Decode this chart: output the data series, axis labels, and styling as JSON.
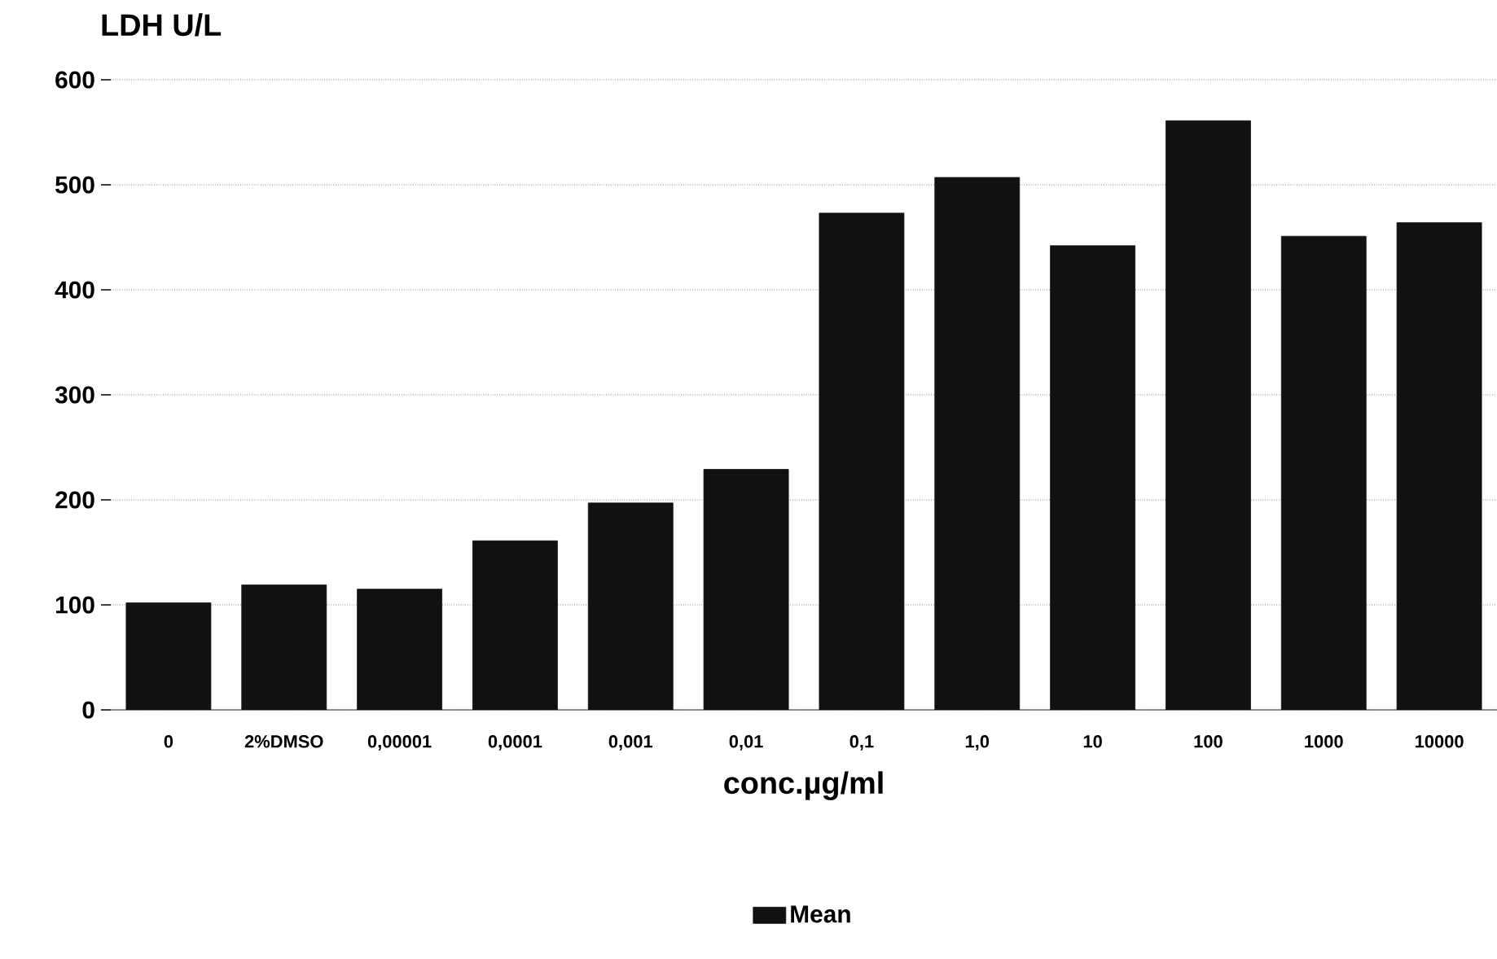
{
  "chart_data": {
    "type": "bar",
    "ylabel": "LDH U/L",
    "xlabel": "conc.µg/ml",
    "categories": [
      "0",
      "2%DMSO",
      "0,00001",
      "0,0001",
      "0,001",
      "0,01",
      "0,1",
      "1,0",
      "10",
      "100",
      "1000",
      "10000"
    ],
    "series": [
      {
        "name": "Mean",
        "color": "#111111",
        "values": [
          102,
          119,
          115,
          161,
          197,
          229,
          473,
          507,
          442,
          561,
          451,
          464
        ]
      }
    ],
    "ylim": [
      0,
      600
    ],
    "yticks": [
      0,
      100,
      200,
      300,
      400,
      500,
      600
    ],
    "grid": "y",
    "legend": "bottom"
  }
}
